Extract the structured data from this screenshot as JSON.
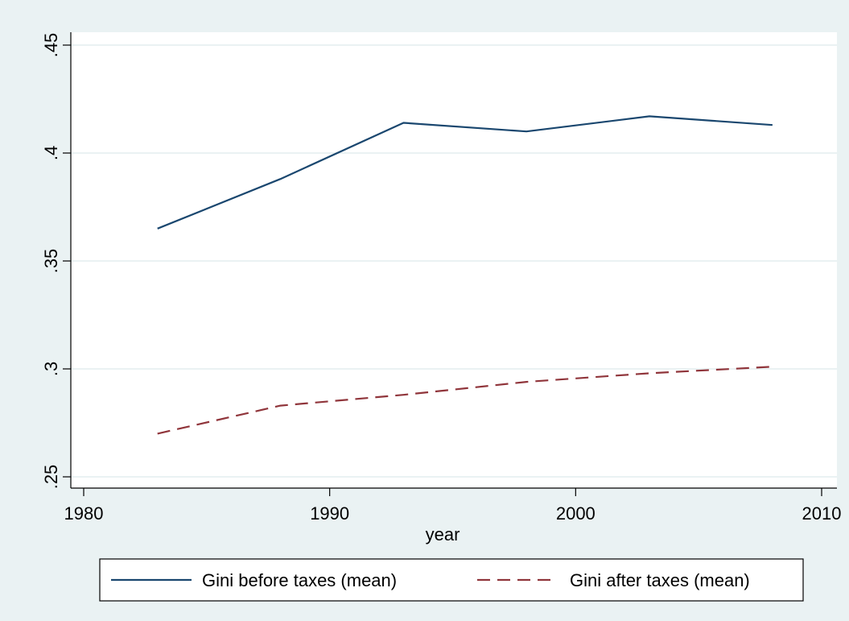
{
  "chart_data": {
    "type": "line",
    "xlabel": "year",
    "ylabel": "",
    "xlim": [
      1980,
      2010
    ],
    "ylim": [
      0.25,
      0.45
    ],
    "x_ticks": [
      1980,
      1990,
      2000,
      2010
    ],
    "x_tick_labels": [
      "1980",
      "1990",
      "2000",
      "2010"
    ],
    "y_ticks": [
      0.25,
      0.3,
      0.35,
      0.4,
      0.45
    ],
    "y_tick_labels": [
      ".25",
      ".3",
      ".35",
      ".4",
      ".45"
    ],
    "grid": "horizontal",
    "legend_position": "bottom",
    "x": [
      1983,
      1988,
      1993,
      1998,
      2003,
      2008
    ],
    "series": [
      {
        "name": "Gini before taxes (mean)",
        "values": [
          0.365,
          0.388,
          0.414,
          0.41,
          0.417,
          0.413
        ],
        "color": "#1a476f",
        "style": "solid"
      },
      {
        "name": "Gini after taxes (mean)",
        "values": [
          0.27,
          0.283,
          0.288,
          0.294,
          0.298,
          0.301
        ],
        "color": "#90353b",
        "style": "dashed"
      }
    ]
  },
  "colors": {
    "outer_background": "#eaf2f3",
    "plot_background": "#ffffff",
    "gridline": "#eaf2f3",
    "axis": "#000000"
  }
}
